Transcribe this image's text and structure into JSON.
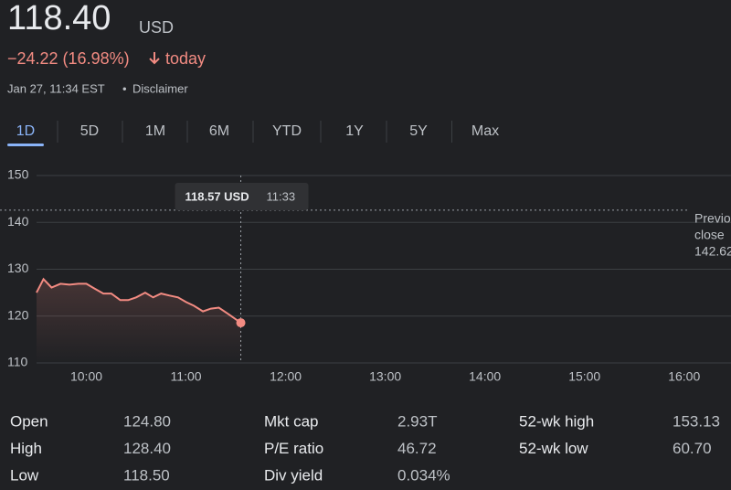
{
  "header": {
    "price": "118.40",
    "currency": "USD",
    "change": "−24.22 (16.98%)",
    "change_period": "today",
    "timestamp": "Jan 27, 11:34 EST",
    "separator": "•",
    "disclaimer": "Disclaimer"
  },
  "tabs": {
    "items": [
      "1D",
      "5D",
      "1M",
      "6M",
      "YTD",
      "1Y",
      "5Y",
      "Max"
    ],
    "selected": 0
  },
  "chart_data": {
    "type": "line",
    "x": [
      9.5,
      9.57,
      9.65,
      9.74,
      9.83,
      9.92,
      10.0,
      10.08,
      10.17,
      10.25,
      10.34,
      10.42,
      10.5,
      10.59,
      10.67,
      10.75,
      10.83,
      10.92,
      11.0,
      11.08,
      11.17,
      11.25,
      11.33,
      11.42,
      11.55
    ],
    "series": [
      {
        "color": "#f28b82",
        "values": [
          125.0,
          127.9,
          126.1,
          126.9,
          126.7,
          126.9,
          126.9,
          125.9,
          124.8,
          124.8,
          123.4,
          123.4,
          124.0,
          125.0,
          124.0,
          124.8,
          124.4,
          124.0,
          123.0,
          122.2,
          121.0,
          121.6,
          121.8,
          120.5,
          118.57
        ]
      }
    ],
    "xlim": [
      9.5,
      16.47
    ],
    "xticks": [
      {
        "value": 10,
        "label": "10:00"
      },
      {
        "value": 11,
        "label": "11:00"
      },
      {
        "value": 12,
        "label": "12:00"
      },
      {
        "value": 13,
        "label": "13:00"
      },
      {
        "value": 14,
        "label": "14:00"
      },
      {
        "value": 15,
        "label": "15:00"
      },
      {
        "value": 16,
        "label": "16:00"
      }
    ],
    "ylim": [
      110,
      150
    ],
    "yticks": [
      110,
      120,
      130,
      140,
      150
    ],
    "grid": true,
    "previous_close": 142.62,
    "previous_close_label": [
      "Previous",
      "close"
    ],
    "tooltip": {
      "x": 11.55,
      "price": {
        "value": 118.57,
        "label": "118.57 USD"
      },
      "time": "11:33"
    }
  },
  "stats": [
    [
      {
        "label": "Open",
        "value": "124.80"
      },
      {
        "label": "High",
        "value": "128.40"
      },
      {
        "label": "Low",
        "value": "118.50"
      }
    ],
    [
      {
        "label": "Mkt cap",
        "value": "2.93T"
      },
      {
        "label": "P/E ratio",
        "value": "46.72"
      },
      {
        "label": "Div yield",
        "value": "0.034%"
      }
    ],
    [
      {
        "label": "52-wk high",
        "value": "153.13"
      },
      {
        "label": "52-wk low",
        "value": "60.70"
      }
    ]
  ]
}
